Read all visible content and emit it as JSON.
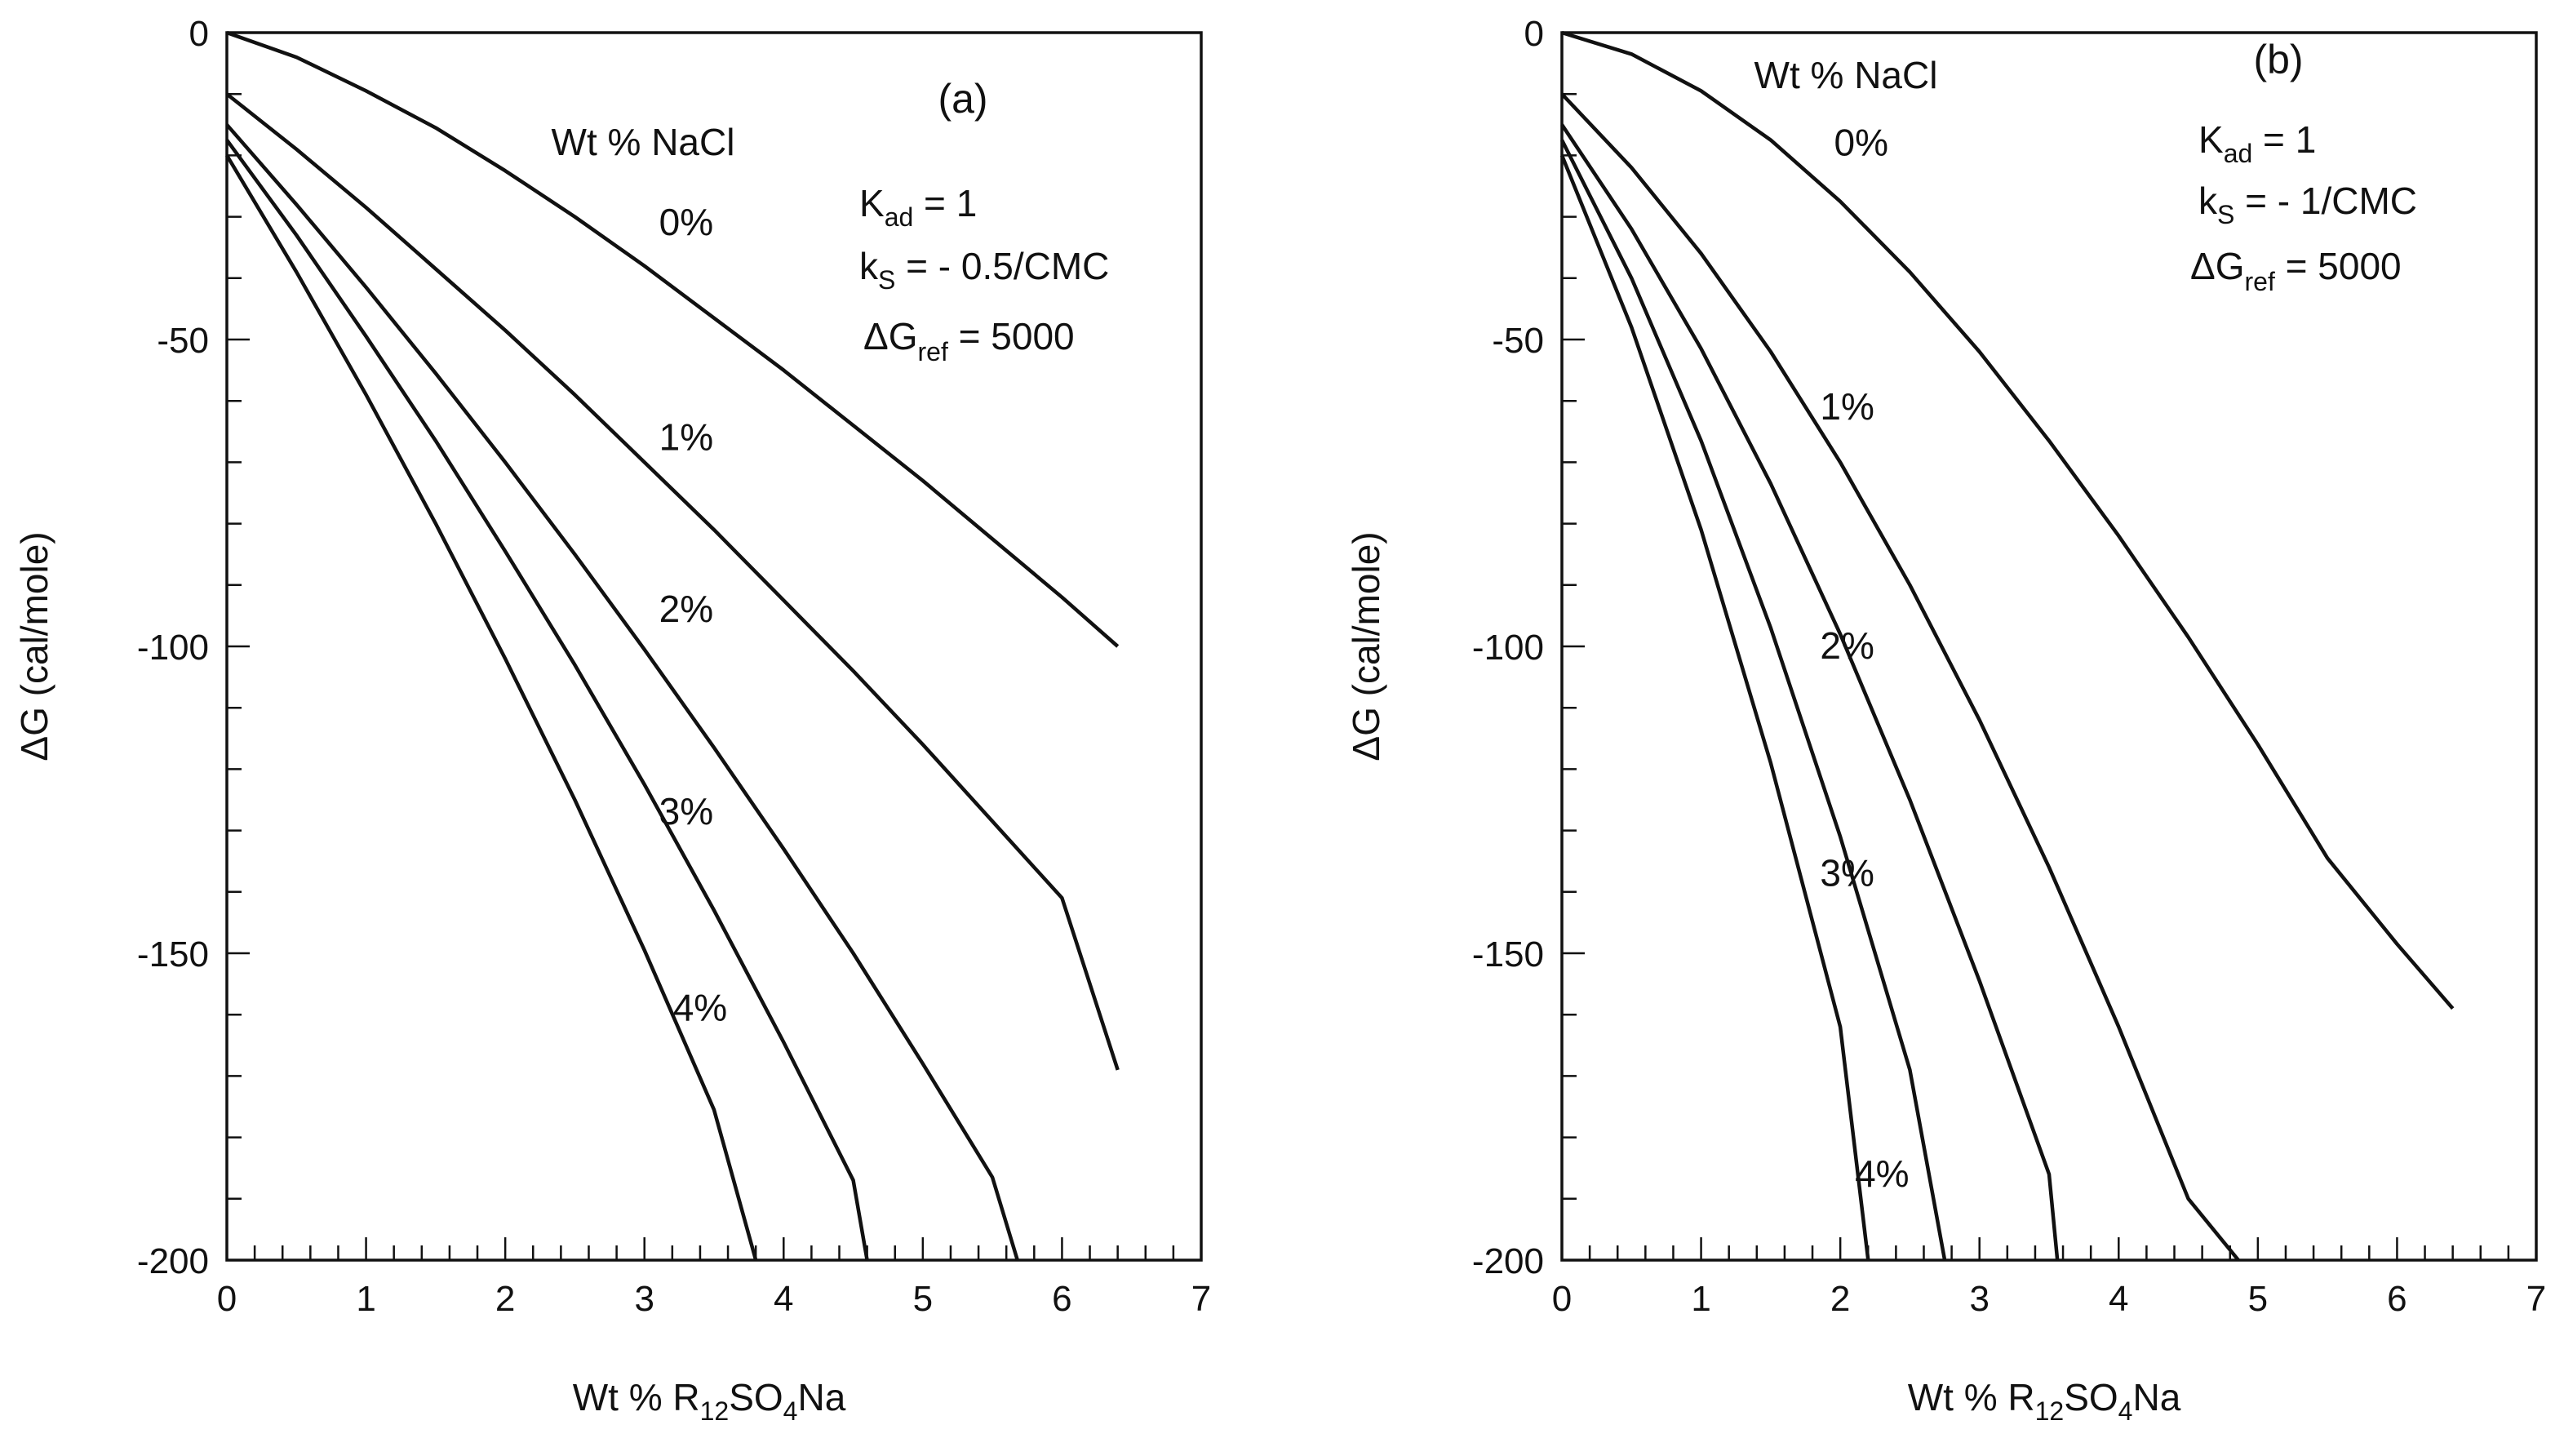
{
  "chart_data": [
    {
      "type": "line",
      "panel_label": "(a)",
      "xlabel": {
        "main": "Wt % R",
        "sub1": "12",
        "mid": "SO",
        "sub2": "4",
        "tail": "Na"
      },
      "ylabel": "ΔG (cal/mole)",
      "xlim": [
        0,
        7
      ],
      "ylim": [
        -200,
        0
      ],
      "x_ticks": [
        "0",
        "1",
        "2",
        "3",
        "4",
        "5",
        "6",
        "7"
      ],
      "y_ticks": [
        "0",
        "-50",
        "-100",
        "-150",
        "-200"
      ],
      "legend_title": "Wt % NaCl",
      "params": {
        "kad": {
          "base": "K",
          "sub": "ad",
          "value": "= 1"
        },
        "ks": {
          "base": "k",
          "sub": "S",
          "value": "= - 0.5/CMC"
        },
        "gref": {
          "base": "ΔG",
          "sub": "ref",
          "value": "= 5000"
        }
      },
      "series": [
        {
          "name": "0%",
          "x": [
            0,
            0.5,
            1,
            1.5,
            2,
            2.5,
            3,
            3.5,
            4,
            4.5,
            5,
            5.5,
            6,
            6.4
          ],
          "y": [
            0,
            -4,
            -9.5,
            -15.5,
            -22.5,
            -30,
            -38,
            -46.5,
            -55,
            -64,
            -73,
            -82.5,
            -92,
            -100
          ],
          "label_at": [
            3.3,
            -33
          ]
        },
        {
          "name": "1%",
          "x": [
            0,
            0.5,
            1,
            1.5,
            2,
            2.5,
            3,
            3.5,
            4,
            4.5,
            5,
            5.5,
            6,
            6.4
          ],
          "y": [
            -10,
            -19,
            -28.5,
            -38.5,
            -48.5,
            -59,
            -70,
            -81,
            -92.5,
            -104,
            -116,
            -128.5,
            -141,
            -169
          ],
          "label_at": [
            3.3,
            -68
          ]
        },
        {
          "name": "2%",
          "x": [
            0,
            0.5,
            1,
            1.5,
            2,
            2.5,
            3,
            3.5,
            4,
            4.5,
            5,
            5.5,
            5.68
          ],
          "y": [
            -15,
            -28,
            -41.5,
            -55.5,
            -70,
            -85,
            -100.5,
            -116.5,
            -133,
            -150,
            -168,
            -186.5,
            -200
          ],
          "label_at": [
            3.3,
            -96
          ]
        },
        {
          "name": "3%",
          "x": [
            0,
            0.5,
            1,
            1.5,
            2,
            2.5,
            3,
            3.5,
            4,
            4.5,
            4.6
          ],
          "y": [
            -17.5,
            -33,
            -49.5,
            -66.5,
            -84.5,
            -103,
            -122.5,
            -143,
            -164.5,
            -187,
            -200
          ],
          "label_at": [
            3.3,
            -129
          ]
        },
        {
          "name": "4%",
          "x": [
            0,
            0.5,
            1,
            1.5,
            2,
            2.5,
            3,
            3.5,
            3.8
          ],
          "y": [
            -20,
            -39,
            -59,
            -80,
            -102,
            -125,
            -149.5,
            -175.5,
            -200
          ],
          "label_at": [
            3.4,
            -161
          ]
        }
      ]
    },
    {
      "type": "line",
      "panel_label": "(b)",
      "xlabel": {
        "main": "Wt % R",
        "sub1": "12",
        "mid": "SO",
        "sub2": "4",
        "tail": "Na"
      },
      "ylabel": "ΔG (cal/mole)",
      "xlim": [
        0,
        7
      ],
      "ylim": [
        -200,
        0
      ],
      "x_ticks": [
        "0",
        "1",
        "2",
        "3",
        "4",
        "5",
        "6",
        "7"
      ],
      "y_ticks": [
        "0",
        "-50",
        "-100",
        "-150",
        "-200"
      ],
      "legend_title": "Wt % NaCl",
      "params": {
        "kad": {
          "base": "K",
          "sub": "ad",
          "value": "= 1"
        },
        "ks": {
          "base": "k",
          "sub": "S",
          "value": "= - 1/CMC"
        },
        "gref": {
          "base": "ΔG",
          "sub": "ref",
          "value": "= 5000"
        }
      },
      "series": [
        {
          "name": "0%",
          "x": [
            0,
            0.5,
            1,
            1.5,
            2,
            2.5,
            3,
            3.5,
            4,
            4.5,
            5,
            5.5,
            6,
            6.4
          ],
          "y": [
            0,
            -3.5,
            -9.5,
            -17.5,
            -27.5,
            -39,
            -52,
            -66.5,
            -82,
            -98.5,
            -116,
            -134.5,
            -148.5,
            -159
          ],
          "label_at": [
            2.15,
            -20
          ]
        },
        {
          "name": "1%",
          "x": [
            0,
            0.5,
            1,
            1.5,
            2,
            2.5,
            3,
            3.5,
            4,
            4.5,
            4.86
          ],
          "y": [
            -10,
            -22,
            -36,
            -52,
            -70,
            -90,
            -112,
            -136,
            -162,
            -190,
            -200
          ],
          "label_at": [
            2.05,
            -63
          ]
        },
        {
          "name": "2%",
          "x": [
            0,
            0.5,
            1,
            1.5,
            2,
            2.5,
            3,
            3.5,
            3.56
          ],
          "y": [
            -15,
            -32,
            -51.5,
            -73.5,
            -98,
            -125,
            -154.5,
            -186,
            -200
          ],
          "label_at": [
            2.05,
            -102
          ]
        },
        {
          "name": "3%",
          "x": [
            0,
            0.5,
            1,
            1.5,
            2,
            2.5,
            2.75
          ],
          "y": [
            -17.5,
            -40,
            -66.5,
            -97,
            -131,
            -169,
            -200
          ],
          "label_at": [
            2.05,
            -139
          ]
        },
        {
          "name": "4%",
          "x": [
            0,
            0.5,
            1,
            1.5,
            2,
            2.2
          ],
          "y": [
            -20,
            -48,
            -81,
            -119,
            -162,
            -200
          ],
          "label_at": [
            2.3,
            -188
          ]
        }
      ]
    }
  ]
}
